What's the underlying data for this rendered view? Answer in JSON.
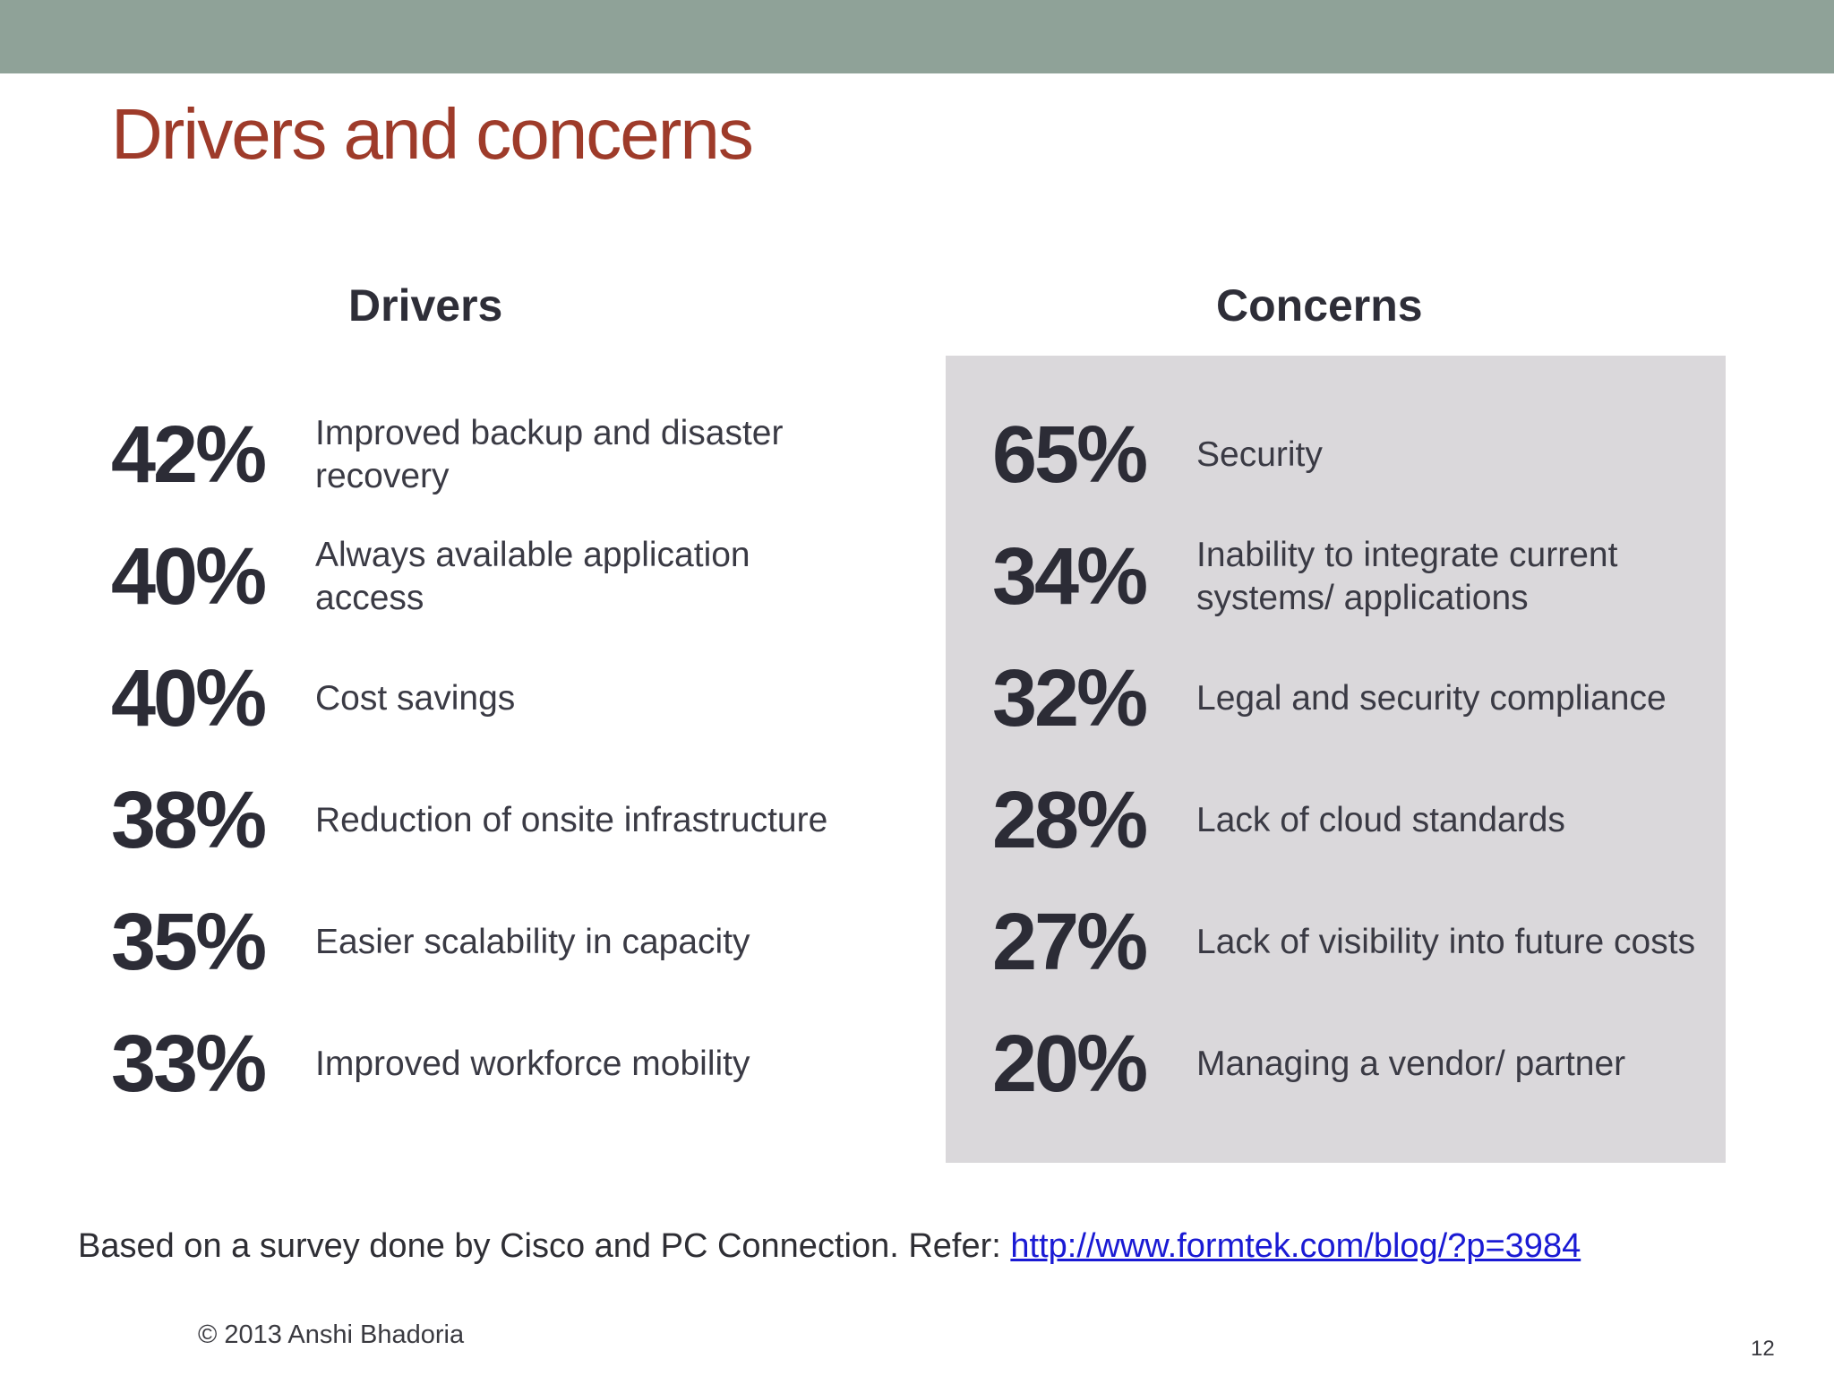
{
  "slide": {
    "title": "Drivers and concerns",
    "page_number": "12",
    "colors": {
      "top_band": "#8fa298",
      "title": "#9e3b2a",
      "concerns_panel": "#dad8db",
      "link": "#1a1ad4"
    }
  },
  "drivers": {
    "heading": "Drivers",
    "items": [
      {
        "percent": "42%",
        "label": "Improved backup and disaster recovery"
      },
      {
        "percent": "40%",
        "label": "Always available application access"
      },
      {
        "percent": "40%",
        "label": "Cost savings"
      },
      {
        "percent": "38%",
        "label": "Reduction of onsite infrastructure"
      },
      {
        "percent": "35%",
        "label": "Easier scalability in capacity"
      },
      {
        "percent": "33%",
        "label": "Improved workforce mobility"
      }
    ]
  },
  "concerns": {
    "heading": "Concerns",
    "items": [
      {
        "percent": "65%",
        "label": "Security"
      },
      {
        "percent": "34%",
        "label": "Inability to integrate current systems/ applications"
      },
      {
        "percent": "32%",
        "label": "Legal and security compliance"
      },
      {
        "percent": "28%",
        "label": "Lack of cloud standards"
      },
      {
        "percent": "27%",
        "label": "Lack of visibility into future costs"
      },
      {
        "percent": "20%",
        "label": "Managing a vendor/ partner"
      }
    ]
  },
  "footer": {
    "source_text": "Based on a survey done by Cisco and PC Connection. Refer: ",
    "source_link": "http://www.formtek.com/blog/?p=3984",
    "copyright": "© 2013 Anshi Bhadoria"
  }
}
